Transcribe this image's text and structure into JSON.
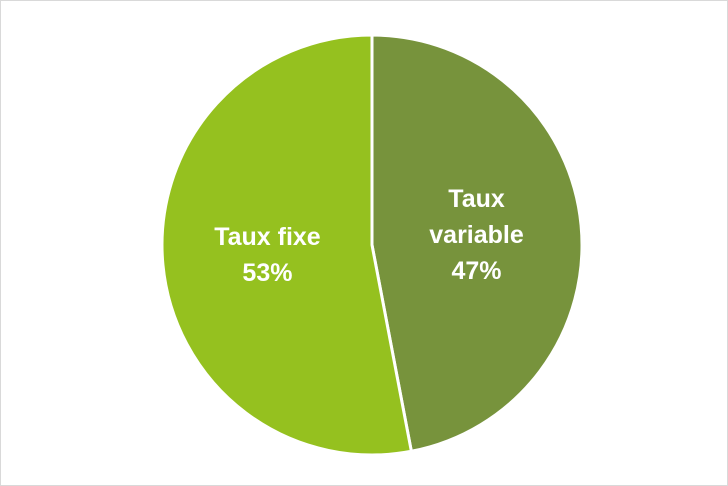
{
  "chart_data": {
    "type": "pie",
    "categories": [
      "Taux variable",
      "Taux fixe"
    ],
    "values": [
      47,
      53
    ],
    "value_labels": [
      "47%",
      "53%"
    ],
    "colors": [
      "#77933c",
      "#95c11f"
    ]
  }
}
